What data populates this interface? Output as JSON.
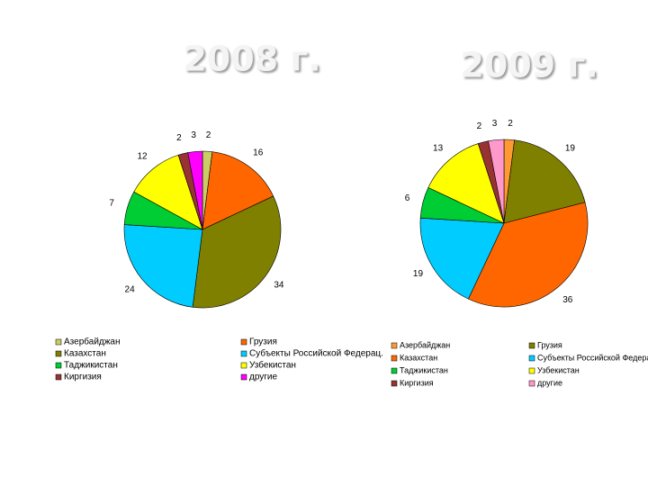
{
  "chart_data": [
    {
      "type": "pie",
      "title": "2008 г.",
      "categories": [
        "Азербайджан",
        "Грузия",
        "Казахстан",
        "Субъекты Российской Федерац.",
        "Таджикистан",
        "Узбекистан",
        "Киргизия",
        "другие"
      ],
      "values": [
        2,
        16,
        34,
        24,
        7,
        12,
        2,
        3
      ],
      "colors": [
        "#cccc66",
        "#ff6600",
        "#808000",
        "#00ccff",
        "#00cc33",
        "#ffff00",
        "#993333",
        "#ff00ff"
      ]
    },
    {
      "type": "pie",
      "title": "2009 г.",
      "categories": [
        "Азербайджан",
        "Грузия",
        "Казахстан",
        "Субъекты Российской Федерации",
        "Таджикистан",
        "Узбекистан",
        "Киргизия",
        "другие"
      ],
      "values": [
        2,
        19,
        36,
        19,
        6,
        13,
        2,
        3
      ],
      "colors": [
        "#ff9933",
        "#808000",
        "#ff6600",
        "#00ccff",
        "#00cc33",
        "#ffff00",
        "#993333",
        "#ff99cc"
      ]
    }
  ]
}
